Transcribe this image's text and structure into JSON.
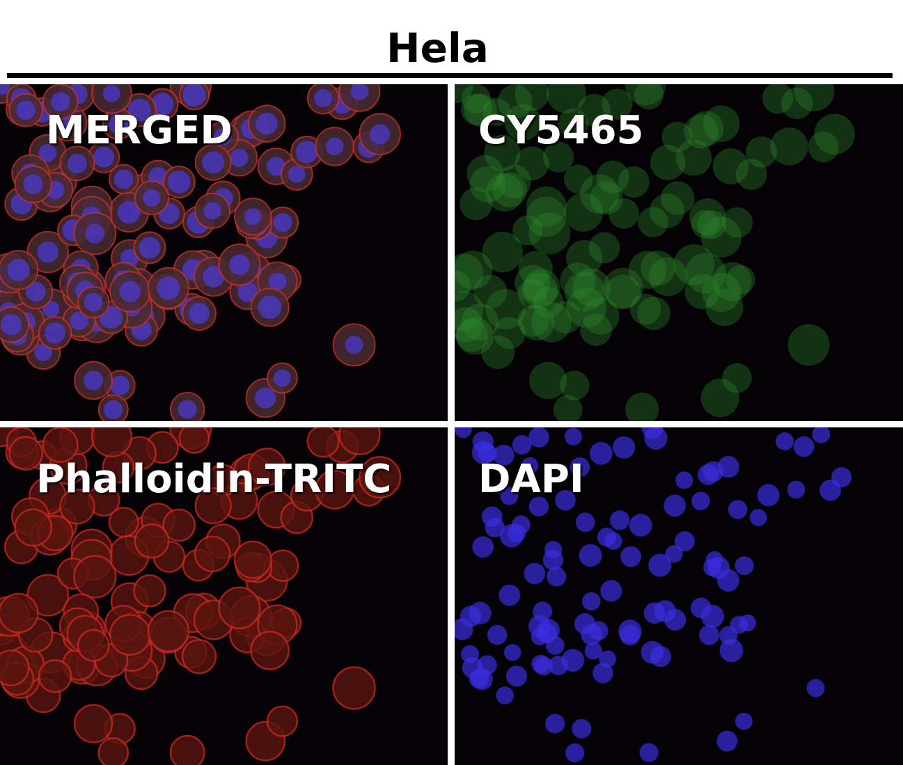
{
  "figure": {
    "title": "Hela",
    "panels": [
      {
        "label": "MERGED",
        "channel_colors": [
          "#c0302a",
          "#3a8a3a",
          "#4a3ad0"
        ]
      },
      {
        "label": "CY5465",
        "channel_colors": [
          "#2f8a2f"
        ]
      },
      {
        "label": "Phalloidin-TRITC",
        "channel_colors": [
          "#c8281e"
        ]
      },
      {
        "label": "DAPI",
        "channel_colors": [
          "#3a2ee0"
        ]
      }
    ]
  }
}
